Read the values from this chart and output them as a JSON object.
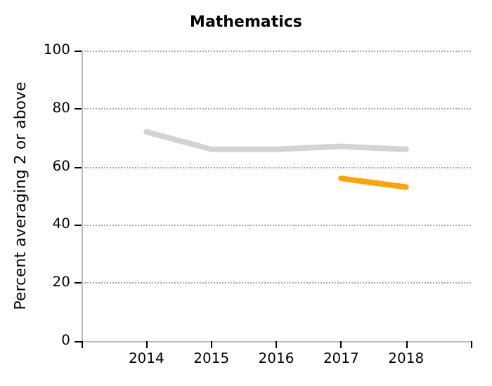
{
  "chart_data": {
    "type": "line",
    "title": "Mathematics",
    "ylabel": "Percent averaging 2 or above",
    "x": [
      2014,
      2015,
      2016,
      2017,
      2018
    ],
    "series": [
      {
        "color": "#d3d3d3",
        "values": [
          72,
          66,
          66,
          67,
          66
        ]
      },
      {
        "color": "#ffa500",
        "values": [
          null,
          null,
          null,
          56,
          53
        ]
      }
    ],
    "xlim": [
      2013,
      2019
    ],
    "xticks": [
      {
        "value": 2013,
        "label": null
      },
      2014,
      2015,
      2016,
      2017,
      2018,
      {
        "value": 2019,
        "label": null
      }
    ],
    "ylim": [
      0,
      100
    ],
    "yticks": [
      0,
      20,
      40,
      60,
      80,
      100
    ],
    "grid": "y",
    "marker": "none",
    "line_style": "solid"
  }
}
